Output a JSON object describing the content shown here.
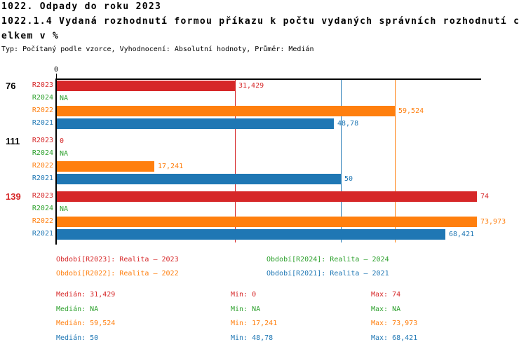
{
  "header": {
    "title_line1": "1022. Odpady do roku 2023",
    "title_line2a": "1022.1.4 Vydaná rozhodnutí formou příkazu k počtu vydaných správních rozhodnutí c",
    "title_line2b": "elkem v %",
    "subtitle": "Typ: Počítaný podle vzorce, Vyhodnocení: Absolutní hodnoty, Průměr: Medián"
  },
  "colors": {
    "R2023": "#d62728",
    "R2024": "#2ca02c",
    "R2022": "#ff7f0e",
    "R2021": "#1f77b4",
    "axis": "#000000",
    "highlight_group_label": "#d62728",
    "group_label": "#000000",
    "background": "#ffffff"
  },
  "chart_data": {
    "type": "bar",
    "orientation": "horizontal",
    "x_range": [
      0,
      74.7
    ],
    "x_tick_labels": [
      "0"
    ],
    "grid": false,
    "series_order": [
      "R2023",
      "R2024",
      "R2022",
      "R2021"
    ],
    "groups": [
      {
        "label": "76",
        "highlight": false,
        "rows": [
          {
            "series": "R2023",
            "value": 31.429,
            "display": "31,429"
          },
          {
            "series": "R2024",
            "value": null,
            "display": "NA"
          },
          {
            "series": "R2022",
            "value": 59.524,
            "display": "59,524"
          },
          {
            "series": "R2021",
            "value": 48.78,
            "display": "48,78"
          }
        ]
      },
      {
        "label": "111",
        "highlight": false,
        "rows": [
          {
            "series": "R2023",
            "value": 0,
            "display": "0"
          },
          {
            "series": "R2024",
            "value": null,
            "display": "NA"
          },
          {
            "series": "R2022",
            "value": 17.241,
            "display": "17,241"
          },
          {
            "series": "R2021",
            "value": 50,
            "display": "50"
          }
        ]
      },
      {
        "label": "139",
        "highlight": true,
        "rows": [
          {
            "series": "R2023",
            "value": 74,
            "display": "74"
          },
          {
            "series": "R2024",
            "value": null,
            "display": "NA"
          },
          {
            "series": "R2022",
            "value": 73.973,
            "display": "73,973"
          },
          {
            "series": "R2021",
            "value": 68.421,
            "display": "68,421"
          }
        ]
      }
    ],
    "median_lines": [
      {
        "series": "R2023",
        "value": 31.429
      },
      {
        "series": "R2021",
        "value": 50
      },
      {
        "series": "R2022",
        "value": 59.524
      }
    ]
  },
  "legend": [
    {
      "series": "R2023",
      "label": "Období[R2023]: Realita – 2023"
    },
    {
      "series": "R2024",
      "label": "Období[R2024]: Realita – 2024"
    },
    {
      "series": "R2022",
      "label": "Období[R2022]: Realita – 2022"
    },
    {
      "series": "R2021",
      "label": "Období[R2021]: Realita – 2021"
    }
  ],
  "stats": [
    {
      "series": "R2023",
      "median": "Medián: 31,429",
      "min": "Min: 0",
      "max": "Max: 74"
    },
    {
      "series": "R2024",
      "median": "Medián: NA",
      "min": "Min: NA",
      "max": "Max: NA"
    },
    {
      "series": "R2022",
      "median": "Medián: 59,524",
      "min": "Min: 17,241",
      "max": "Max: 73,973"
    },
    {
      "series": "R2021",
      "median": "Medián: 50",
      "min": "Min: 48,78",
      "max": "Max: 68,421"
    }
  ]
}
